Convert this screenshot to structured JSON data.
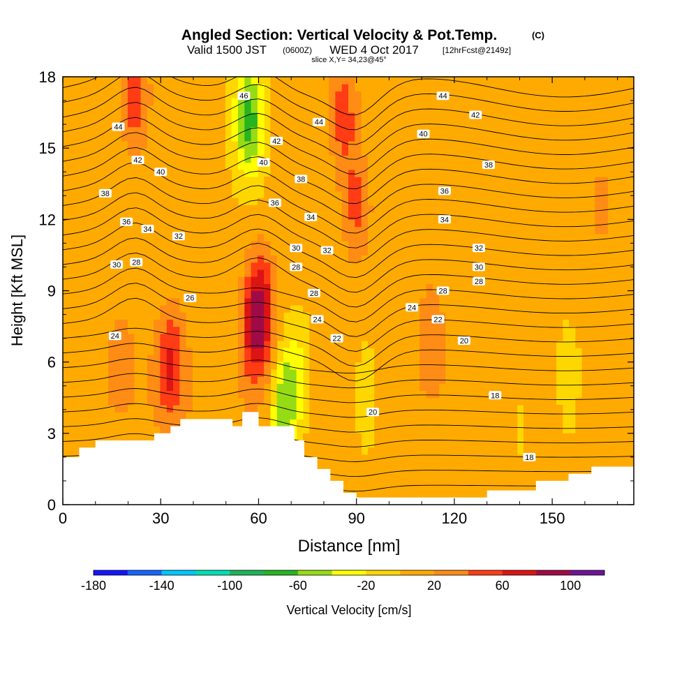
{
  "chart_data": {
    "type": "heatmap",
    "title_main": "Angled Section: Vertical Velocity & Pot.Temp.",
    "title_unit": "(C)",
    "subtitle_valid": "Valid 1500 JST",
    "subtitle_utc": "(0600Z)",
    "subtitle_date": "WED 4 Oct 2017",
    "subtitle_fcst": "[12hrFcst@2149z]",
    "slice_label": "slice X,Y= 34,23@45°",
    "xlabel": "Distance [nm]",
    "ylabel": "Height [Kft MSL]",
    "xlim": [
      0,
      175
    ],
    "ylim": [
      0,
      18
    ],
    "x_ticks": [
      "0",
      "30",
      "60",
      "90",
      "120",
      "150"
    ],
    "y_ticks": [
      "0",
      "3",
      "6",
      "9",
      "12",
      "15",
      "18"
    ],
    "colorbar": {
      "label": "Vertical Velocity [cm/s]",
      "tick_labels": [
        "-180",
        "-140",
        "-100",
        "-60",
        "-20",
        "20",
        "60",
        "100"
      ],
      "bins": [
        -180,
        -160,
        -140,
        -120,
        -100,
        -80,
        -60,
        -40,
        -20,
        0,
        20,
        40,
        60,
        80,
        100,
        120
      ],
      "colors": [
        "#1414ff",
        "#1464ff",
        "#00c8ff",
        "#00e0b4",
        "#1eb45a",
        "#28b41e",
        "#96dc14",
        "#ffff00",
        "#ffd700",
        "#ffaa00",
        "#ff8c14",
        "#ff3c14",
        "#dc1414",
        "#a00a46",
        "#6e1496"
      ]
    },
    "terrain_kft": [
      [
        0,
        2.0
      ],
      [
        5,
        2.4
      ],
      [
        10,
        2.7
      ],
      [
        20,
        2.7
      ],
      [
        28,
        3.0
      ],
      [
        33,
        3.3
      ],
      [
        36,
        3.6
      ],
      [
        50,
        3.6
      ],
      [
        52,
        3.3
      ],
      [
        55,
        3.9
      ],
      [
        58,
        3.9
      ],
      [
        60,
        3.3
      ],
      [
        68,
        3.3
      ],
      [
        71,
        2.7
      ],
      [
        74,
        2.0
      ],
      [
        78,
        1.5
      ],
      [
        82,
        1.0
      ],
      [
        86,
        0.5
      ],
      [
        90,
        0.3
      ],
      [
        100,
        0.3
      ],
      [
        110,
        0.3
      ],
      [
        120,
        0.3
      ],
      [
        128,
        0.3
      ],
      [
        130,
        0.6
      ],
      [
        142,
        0.6
      ],
      [
        145,
        1.0
      ],
      [
        152,
        1.0
      ],
      [
        155,
        1.3
      ],
      [
        162,
        1.6
      ],
      [
        175,
        1.6
      ]
    ],
    "velocity_features": [
      {
        "x": 22,
        "y": 17.2,
        "value": 50
      },
      {
        "x": 33,
        "y": 6.0,
        "value": 55
      },
      {
        "x": 59,
        "y": 7.5,
        "value": 60
      },
      {
        "x": 61,
        "y": 8.5,
        "value": 45
      },
      {
        "x": 57,
        "y": 16.2,
        "value": -75
      },
      {
        "x": 68,
        "y": 4.2,
        "value": -65
      },
      {
        "x": 72,
        "y": 5.5,
        "value": -25
      },
      {
        "x": 93,
        "y": 4.5,
        "value": -25
      },
      {
        "x": 90,
        "y": 12.5,
        "value": 40
      },
      {
        "x": 86,
        "y": 16.5,
        "value": 45
      },
      {
        "x": 113,
        "y": 7.5,
        "value": 25
      },
      {
        "x": 140,
        "y": 3.8,
        "value": -15
      },
      {
        "x": 155,
        "y": 5.0,
        "value": -25
      },
      {
        "x": 165,
        "y": 12.5,
        "value": 20
      },
      {
        "x": 18,
        "y": 6.5,
        "value": 20
      },
      {
        "x": 75,
        "y": 14.0,
        "value": 10
      },
      {
        "x": 125,
        "y": 15.5,
        "value": 5
      }
    ],
    "contour_interval_c": 1,
    "contour_labels": [
      {
        "text": "46",
        "x": 55.5,
        "y": 17.2
      },
      {
        "text": "44",
        "x": 116.5,
        "y": 17.2
      },
      {
        "text": "44",
        "x": 17,
        "y": 15.9
      },
      {
        "text": "44",
        "x": 78.5,
        "y": 16.1
      },
      {
        "text": "42",
        "x": 126.5,
        "y": 16.4
      },
      {
        "text": "42",
        "x": 65.5,
        "y": 15.3
      },
      {
        "text": "42",
        "x": 23,
        "y": 14.5
      },
      {
        "text": "40",
        "x": 110.5,
        "y": 15.6
      },
      {
        "text": "40",
        "x": 61.5,
        "y": 14.4
      },
      {
        "text": "40",
        "x": 30,
        "y": 14.0
      },
      {
        "text": "38",
        "x": 130.5,
        "y": 14.3
      },
      {
        "text": "38",
        "x": 73,
        "y": 13.7
      },
      {
        "text": "38",
        "x": 13,
        "y": 13.1
      },
      {
        "text": "36",
        "x": 117,
        "y": 13.2
      },
      {
        "text": "36",
        "x": 65,
        "y": 12.7
      },
      {
        "text": "36",
        "x": 19.5,
        "y": 11.9
      },
      {
        "text": "34",
        "x": 117,
        "y": 12.0
      },
      {
        "text": "34",
        "x": 76,
        "y": 12.1
      },
      {
        "text": "34",
        "x": 26,
        "y": 11.6
      },
      {
        "text": "32",
        "x": 127.5,
        "y": 10.8
      },
      {
        "text": "32",
        "x": 81,
        "y": 10.7
      },
      {
        "text": "32",
        "x": 35.5,
        "y": 11.3
      },
      {
        "text": "30",
        "x": 127.5,
        "y": 10.0
      },
      {
        "text": "30",
        "x": 71.5,
        "y": 10.8
      },
      {
        "text": "30",
        "x": 16.5,
        "y": 10.1
      },
      {
        "text": "28",
        "x": 127.5,
        "y": 9.4
      },
      {
        "text": "28",
        "x": 71.5,
        "y": 10.0
      },
      {
        "text": "28",
        "x": 22.5,
        "y": 10.2
      },
      {
        "text": "28",
        "x": 116.5,
        "y": 9.0
      },
      {
        "text": "28",
        "x": 77,
        "y": 8.9
      },
      {
        "text": "26",
        "x": 39,
        "y": 8.7
      },
      {
        "text": "24",
        "x": 107,
        "y": 8.3
      },
      {
        "text": "24",
        "x": 78,
        "y": 7.8
      },
      {
        "text": "24",
        "x": 16,
        "y": 7.1
      },
      {
        "text": "22",
        "x": 115,
        "y": 7.8
      },
      {
        "text": "22",
        "x": 84,
        "y": 7.0
      },
      {
        "text": "20",
        "x": 123,
        "y": 6.9
      },
      {
        "text": "20",
        "x": 95,
        "y": 3.9
      },
      {
        "text": "18",
        "x": 132.5,
        "y": 4.6
      },
      {
        "text": "18",
        "x": 143,
        "y": 2.0
      }
    ]
  }
}
